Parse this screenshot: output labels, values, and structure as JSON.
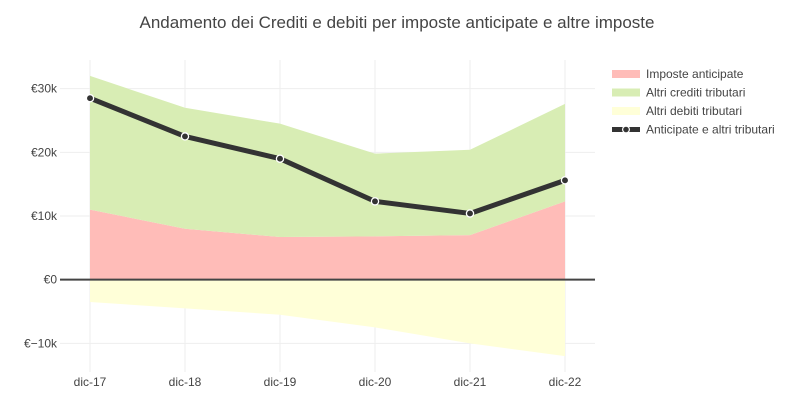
{
  "chart_data": {
    "type": "area",
    "title": "Andamento dei Crediti e debiti per imposte anticipate e altre imposte",
    "categories": [
      "dic-17",
      "dic-18",
      "dic-19",
      "dic-20",
      "dic-21",
      "dic-22"
    ],
    "series": [
      {
        "name": "Imposte anticipate",
        "kind": "stacked-area",
        "color": "#ffbcb8",
        "values": [
          11000,
          8000,
          6700,
          6800,
          7000,
          12300
        ]
      },
      {
        "name": "Altri crediti tributari",
        "kind": "stacked-area",
        "color": "#d8edb4",
        "values": [
          21000,
          19000,
          17800,
          13000,
          13400,
          15300
        ]
      },
      {
        "name": "Altri debiti tributari",
        "kind": "area",
        "color": "#ffffd8",
        "values": [
          -3500,
          -4500,
          -5500,
          -7500,
          -10000,
          -12000
        ]
      },
      {
        "name": "Anticipate e altri tributari",
        "kind": "line",
        "color": "#333333",
        "values": [
          28500,
          22500,
          19000,
          12300,
          10400,
          15600
        ]
      }
    ],
    "y_ticks": [
      {
        "value": 30000,
        "label": "€30k"
      },
      {
        "value": 20000,
        "label": "€20k"
      },
      {
        "value": 10000,
        "label": "€10k"
      },
      {
        "value": 0,
        "label": "€0"
      },
      {
        "value": -10000,
        "label": "€−10k"
      }
    ],
    "ylim": [
      -14500,
      34500
    ],
    "grid": true,
    "legend_position": "top-right"
  }
}
